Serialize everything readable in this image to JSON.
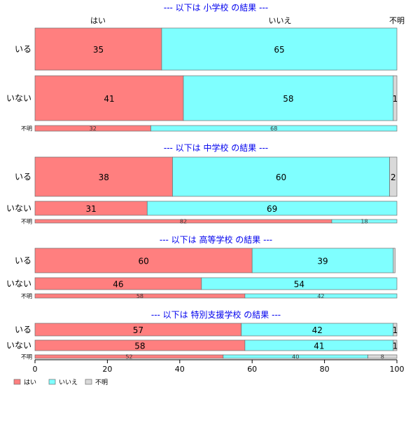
{
  "chart_data": {
    "type": "bar",
    "orientation": "horizontal",
    "stacked": true,
    "percent": true,
    "xlim": [
      0,
      100
    ],
    "xticks": [
      0,
      20,
      40,
      60,
      80,
      100
    ],
    "top_labels": [
      "はい",
      "いいえ",
      "不明"
    ],
    "categories": [
      "はい",
      "いいえ",
      "不明"
    ],
    "colors": {
      "はい": "#ff7f7f",
      "いいえ": "#7fffff",
      "不明": "#d9d9d9"
    },
    "legend": {
      "position": "bottom-left",
      "entries": [
        "はい",
        "いいえ",
        "不明"
      ]
    },
    "panels": [
      {
        "title": "--- 以下は 小学校 の結果 ---",
        "rows": [
          {
            "label": "いる",
            "values": [
              35,
              65,
              0
            ],
            "labels": [
              "35",
              "65",
              ""
            ]
          },
          {
            "label": "いない",
            "values": [
              41,
              58,
              1
            ],
            "labels": [
              "41",
              "58",
              "1"
            ]
          },
          {
            "label": "不明",
            "small": true,
            "values": [
              32,
              68,
              0
            ],
            "labels": [
              "32",
              "68",
              ""
            ]
          }
        ]
      },
      {
        "title": "--- 以下は 中学校 の結果 ---",
        "rows": [
          {
            "label": "いる",
            "values": [
              38,
              60,
              2
            ],
            "labels": [
              "38",
              "60",
              "2"
            ]
          },
          {
            "label": "いない",
            "values": [
              31,
              69,
              0
            ],
            "labels": [
              "31",
              "69",
              ""
            ]
          },
          {
            "label": "不明",
            "small": true,
            "values": [
              82,
              18,
              0
            ],
            "labels": [
              "82",
              "18",
              ""
            ]
          }
        ]
      },
      {
        "title": "--- 以下は 高等学校 の結果 ---",
        "rows": [
          {
            "label": "いる",
            "values": [
              60,
              39,
              0.5
            ],
            "labels": [
              "60",
              "39",
              ""
            ]
          },
          {
            "label": "いない",
            "values": [
              46,
              54,
              0
            ],
            "labels": [
              "46",
              "54",
              ""
            ]
          },
          {
            "label": "不明",
            "small": true,
            "values": [
              58,
              42,
              0
            ],
            "labels": [
              "58",
              "42",
              ""
            ]
          }
        ]
      },
      {
        "title": "--- 以下は 特別支援学校 の結果 ---",
        "rows": [
          {
            "label": "いる",
            "values": [
              57,
              42,
              1
            ],
            "labels": [
              "57",
              "42",
              "1"
            ]
          },
          {
            "label": "いない",
            "values": [
              58,
              41,
              1
            ],
            "labels": [
              "58",
              "41",
              "1"
            ]
          },
          {
            "label": "不明",
            "small": true,
            "values": [
              52,
              40,
              8
            ],
            "labels": [
              "52",
              "40",
              "8"
            ]
          }
        ]
      }
    ]
  }
}
